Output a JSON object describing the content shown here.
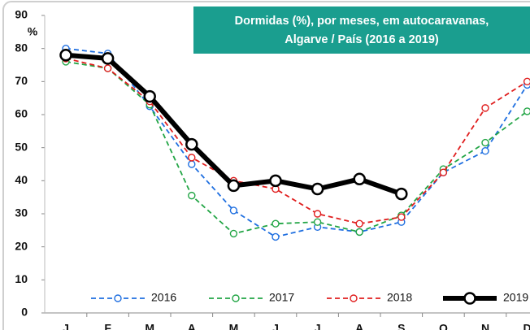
{
  "chart_data": {
    "type": "line",
    "title": [
      "Dormidas (%), por meses, em autocaravanas,",
      "Algarve / País (2016 a 2019)"
    ],
    "y_label": "%",
    "categories": [
      "J",
      "F",
      "M",
      "A",
      "M",
      "J",
      "J",
      "A",
      "S",
      "O",
      "N",
      "D"
    ],
    "series": [
      {
        "name": "2016",
        "color": "#1f6fe0",
        "dashed": true,
        "values": [
          80,
          78.5,
          62.5,
          45,
          31,
          23,
          26,
          24.5,
          27.5,
          42.5,
          49,
          69
        ]
      },
      {
        "name": "2017",
        "color": "#22a545",
        "dashed": true,
        "values": [
          76,
          74,
          63,
          35.5,
          24,
          27,
          27.5,
          24.5,
          29.5,
          43.5,
          51.5,
          61
        ]
      },
      {
        "name": "2018",
        "color": "#e01e1e",
        "dashed": true,
        "values": [
          77,
          74,
          64,
          47,
          40,
          37.5,
          30,
          27,
          29,
          42.5,
          62,
          70
        ]
      },
      {
        "name": "2019",
        "color": "#000000",
        "dashed": false,
        "values": [
          78,
          77,
          65.5,
          51,
          38.5,
          40,
          37.5,
          40.5,
          36,
          null,
          null,
          null
        ]
      }
    ],
    "ylim": [
      0,
      90
    ],
    "yticks": [
      0,
      10,
      20,
      30,
      40,
      50,
      60,
      70,
      80,
      90
    ],
    "grid": false
  }
}
